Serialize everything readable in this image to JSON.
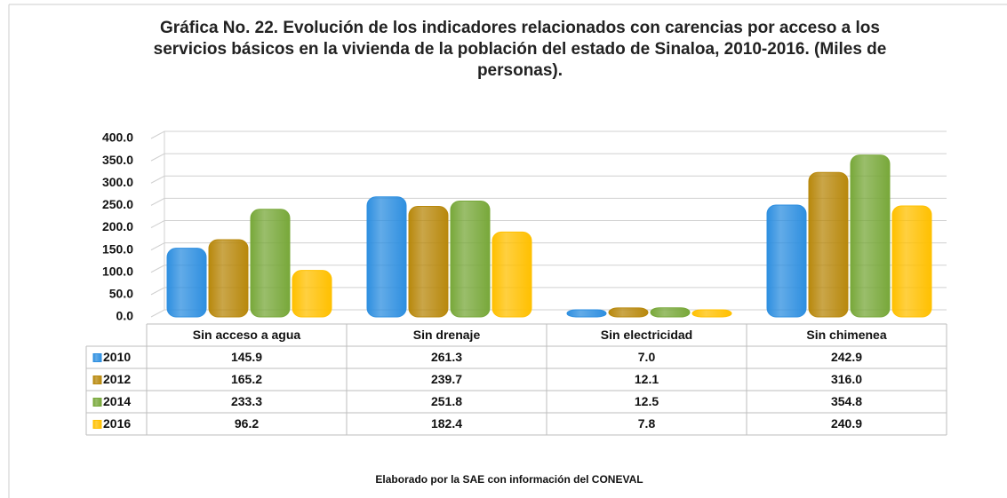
{
  "chart_data": {
    "type": "bar",
    "title": "Gráfica No. 22. Evolución de los indicadores relacionados con carencias por acceso a los servicios básicos en la vivienda de la población del estado de Sinaloa, 2010-2016. (Miles de personas).",
    "categories": [
      "Sin acceso a agua",
      "Sin drenaje",
      "Sin electricidad",
      "Sin chimenea"
    ],
    "series": [
      {
        "name": "2010",
        "color": "#2e8fe0",
        "values": [
          145.9,
          261.3,
          7.0,
          242.9
        ],
        "value_labels": [
          "145.9",
          "261.3",
          "7.0",
          "242.9"
        ]
      },
      {
        "name": "2012",
        "color": "#b8880c",
        "values": [
          165.2,
          239.7,
          12.1,
          316.0
        ],
        "value_labels": [
          "165.2",
          "239.7",
          "12.1",
          "316.0"
        ]
      },
      {
        "name": "2014",
        "color": "#78a83a",
        "values": [
          233.3,
          251.8,
          12.5,
          354.8
        ],
        "value_labels": [
          "233.3",
          "251.8",
          "12.5",
          "354.8"
        ]
      },
      {
        "name": "2016",
        "color": "#ffc000",
        "values": [
          96.2,
          182.4,
          7.8,
          240.9
        ],
        "value_labels": [
          "96.2",
          "182.4",
          "7.8",
          "240.9"
        ]
      }
    ],
    "ylim": [
      0,
      400
    ],
    "yticks": [
      {
        "value": 0,
        "label": "0.0"
      },
      {
        "value": 50,
        "label": "50.0"
      },
      {
        "value": 100,
        "label": "100.0"
      },
      {
        "value": 150,
        "label": "150.0"
      },
      {
        "value": 200,
        "label": "200.0"
      },
      {
        "value": 250,
        "label": "250.0"
      },
      {
        "value": 300,
        "label": "300.0"
      },
      {
        "value": 350,
        "label": "350.0"
      },
      {
        "value": 400,
        "label": "400.0"
      }
    ],
    "grid": true,
    "note": "Elaborado por la SAE con información del CONEVAL"
  }
}
